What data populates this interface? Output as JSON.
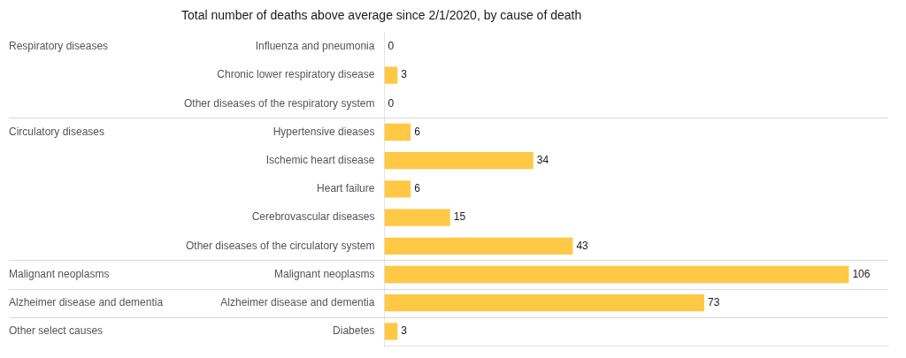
{
  "chart_data": {
    "type": "bar",
    "orientation": "horizontal",
    "title": "Total number of deaths above average since 2/1/2020, by cause of death",
    "categories": [
      "Influenza and pneumonia",
      "Chronic lower respiratory disease",
      "Other diseases of the respiratory system",
      "Hypertensive dieases",
      "Ischemic heart disease",
      "Heart failure",
      "Cerebrovascular diseases",
      "Other diseases of the circulatory system",
      "Malignant neoplasms",
      "Alzheimer disease and dementia",
      "Diabetes"
    ],
    "group_labels": [
      "Respiratory diseases",
      null,
      null,
      "Circulatory diseases",
      null,
      null,
      null,
      null,
      "Malignant neoplasms",
      "Alzheimer disease and dementia",
      "Other select causes"
    ],
    "values": [
      0,
      3,
      0,
      6,
      34,
      6,
      15,
      43,
      106,
      73,
      3
    ],
    "color": "#FFC845",
    "xlim": [
      0,
      115
    ],
    "data_labels": true,
    "tick_labels": "y",
    "grid": false
  }
}
